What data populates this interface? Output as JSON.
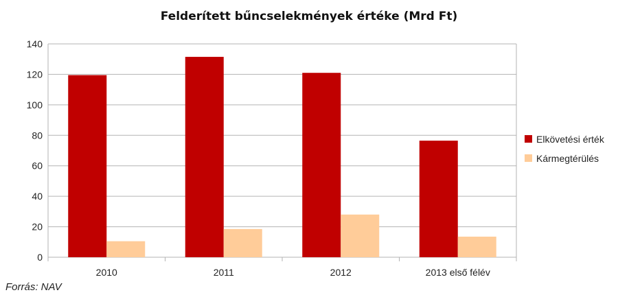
{
  "chart_data": {
    "type": "bar",
    "title": "Felderített bűncselekmények értéke (Mrd Ft)",
    "categories": [
      "2010",
      "2011",
      "2012",
      "2013 első félév"
    ],
    "series": [
      {
        "name": "Elkövetési érték",
        "values": [
          119.5,
          131.5,
          121,
          76.5
        ],
        "color": "#c00000"
      },
      {
        "name": "Kármegtérülés",
        "values": [
          10.5,
          18.5,
          28,
          13.5
        ],
        "color": "#ffcc99"
      }
    ],
    "ylim": [
      0,
      140
    ],
    "yticks": [
      "0",
      "20",
      "40",
      "60",
      "80",
      "100",
      "120",
      "140"
    ],
    "grid": true,
    "legend_position": "right"
  },
  "source": "Forrás: NAV"
}
